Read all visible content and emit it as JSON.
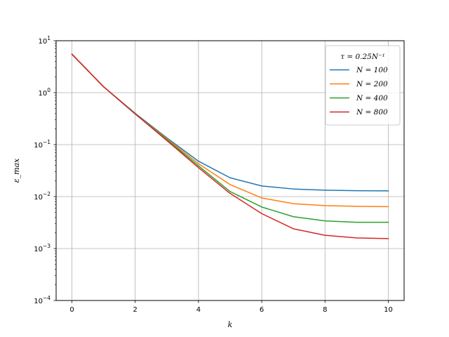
{
  "chart_data": {
    "type": "line",
    "xlabel": "k",
    "ylabel": "ε_max",
    "x": [
      0,
      1,
      2,
      3,
      4,
      5,
      6,
      7,
      8,
      9,
      10
    ],
    "xlim": [
      -0.5,
      10.5
    ],
    "ylim": [
      0.0001,
      10
    ],
    "yscale": "log",
    "grid": true,
    "legend_position": "top-right",
    "legend_title": "τ = 0.25N⁻¹",
    "xticks": [
      "0",
      "2",
      "4",
      "6",
      "8",
      "10"
    ],
    "yticks": [
      {
        "base": "10",
        "exp": "1"
      },
      {
        "base": "10",
        "exp": "0"
      },
      {
        "base": "10",
        "exp": "−1"
      },
      {
        "base": "10",
        "exp": "−2"
      },
      {
        "base": "10",
        "exp": "−3"
      },
      {
        "base": "10",
        "exp": "−4"
      }
    ],
    "series": [
      {
        "name": "N = 100",
        "color": "#1f77b4",
        "values": [
          5.5,
          1.3,
          0.4,
          0.135,
          0.048,
          0.023,
          0.016,
          0.014,
          0.0133,
          0.013,
          0.0129
        ]
      },
      {
        "name": "N = 200",
        "color": "#ff7f0e",
        "values": [
          5.5,
          1.3,
          0.39,
          0.13,
          0.043,
          0.017,
          0.0094,
          0.0073,
          0.0067,
          0.0065,
          0.0064
        ]
      },
      {
        "name": "N = 400",
        "color": "#2ca02c",
        "values": [
          5.5,
          1.3,
          0.39,
          0.125,
          0.039,
          0.0125,
          0.0063,
          0.0041,
          0.0034,
          0.0032,
          0.0032
        ]
      },
      {
        "name": "N = 800",
        "color": "#d62728",
        "values": [
          5.5,
          1.3,
          0.39,
          0.12,
          0.036,
          0.0115,
          0.0047,
          0.0024,
          0.0018,
          0.0016,
          0.00155
        ]
      }
    ]
  }
}
